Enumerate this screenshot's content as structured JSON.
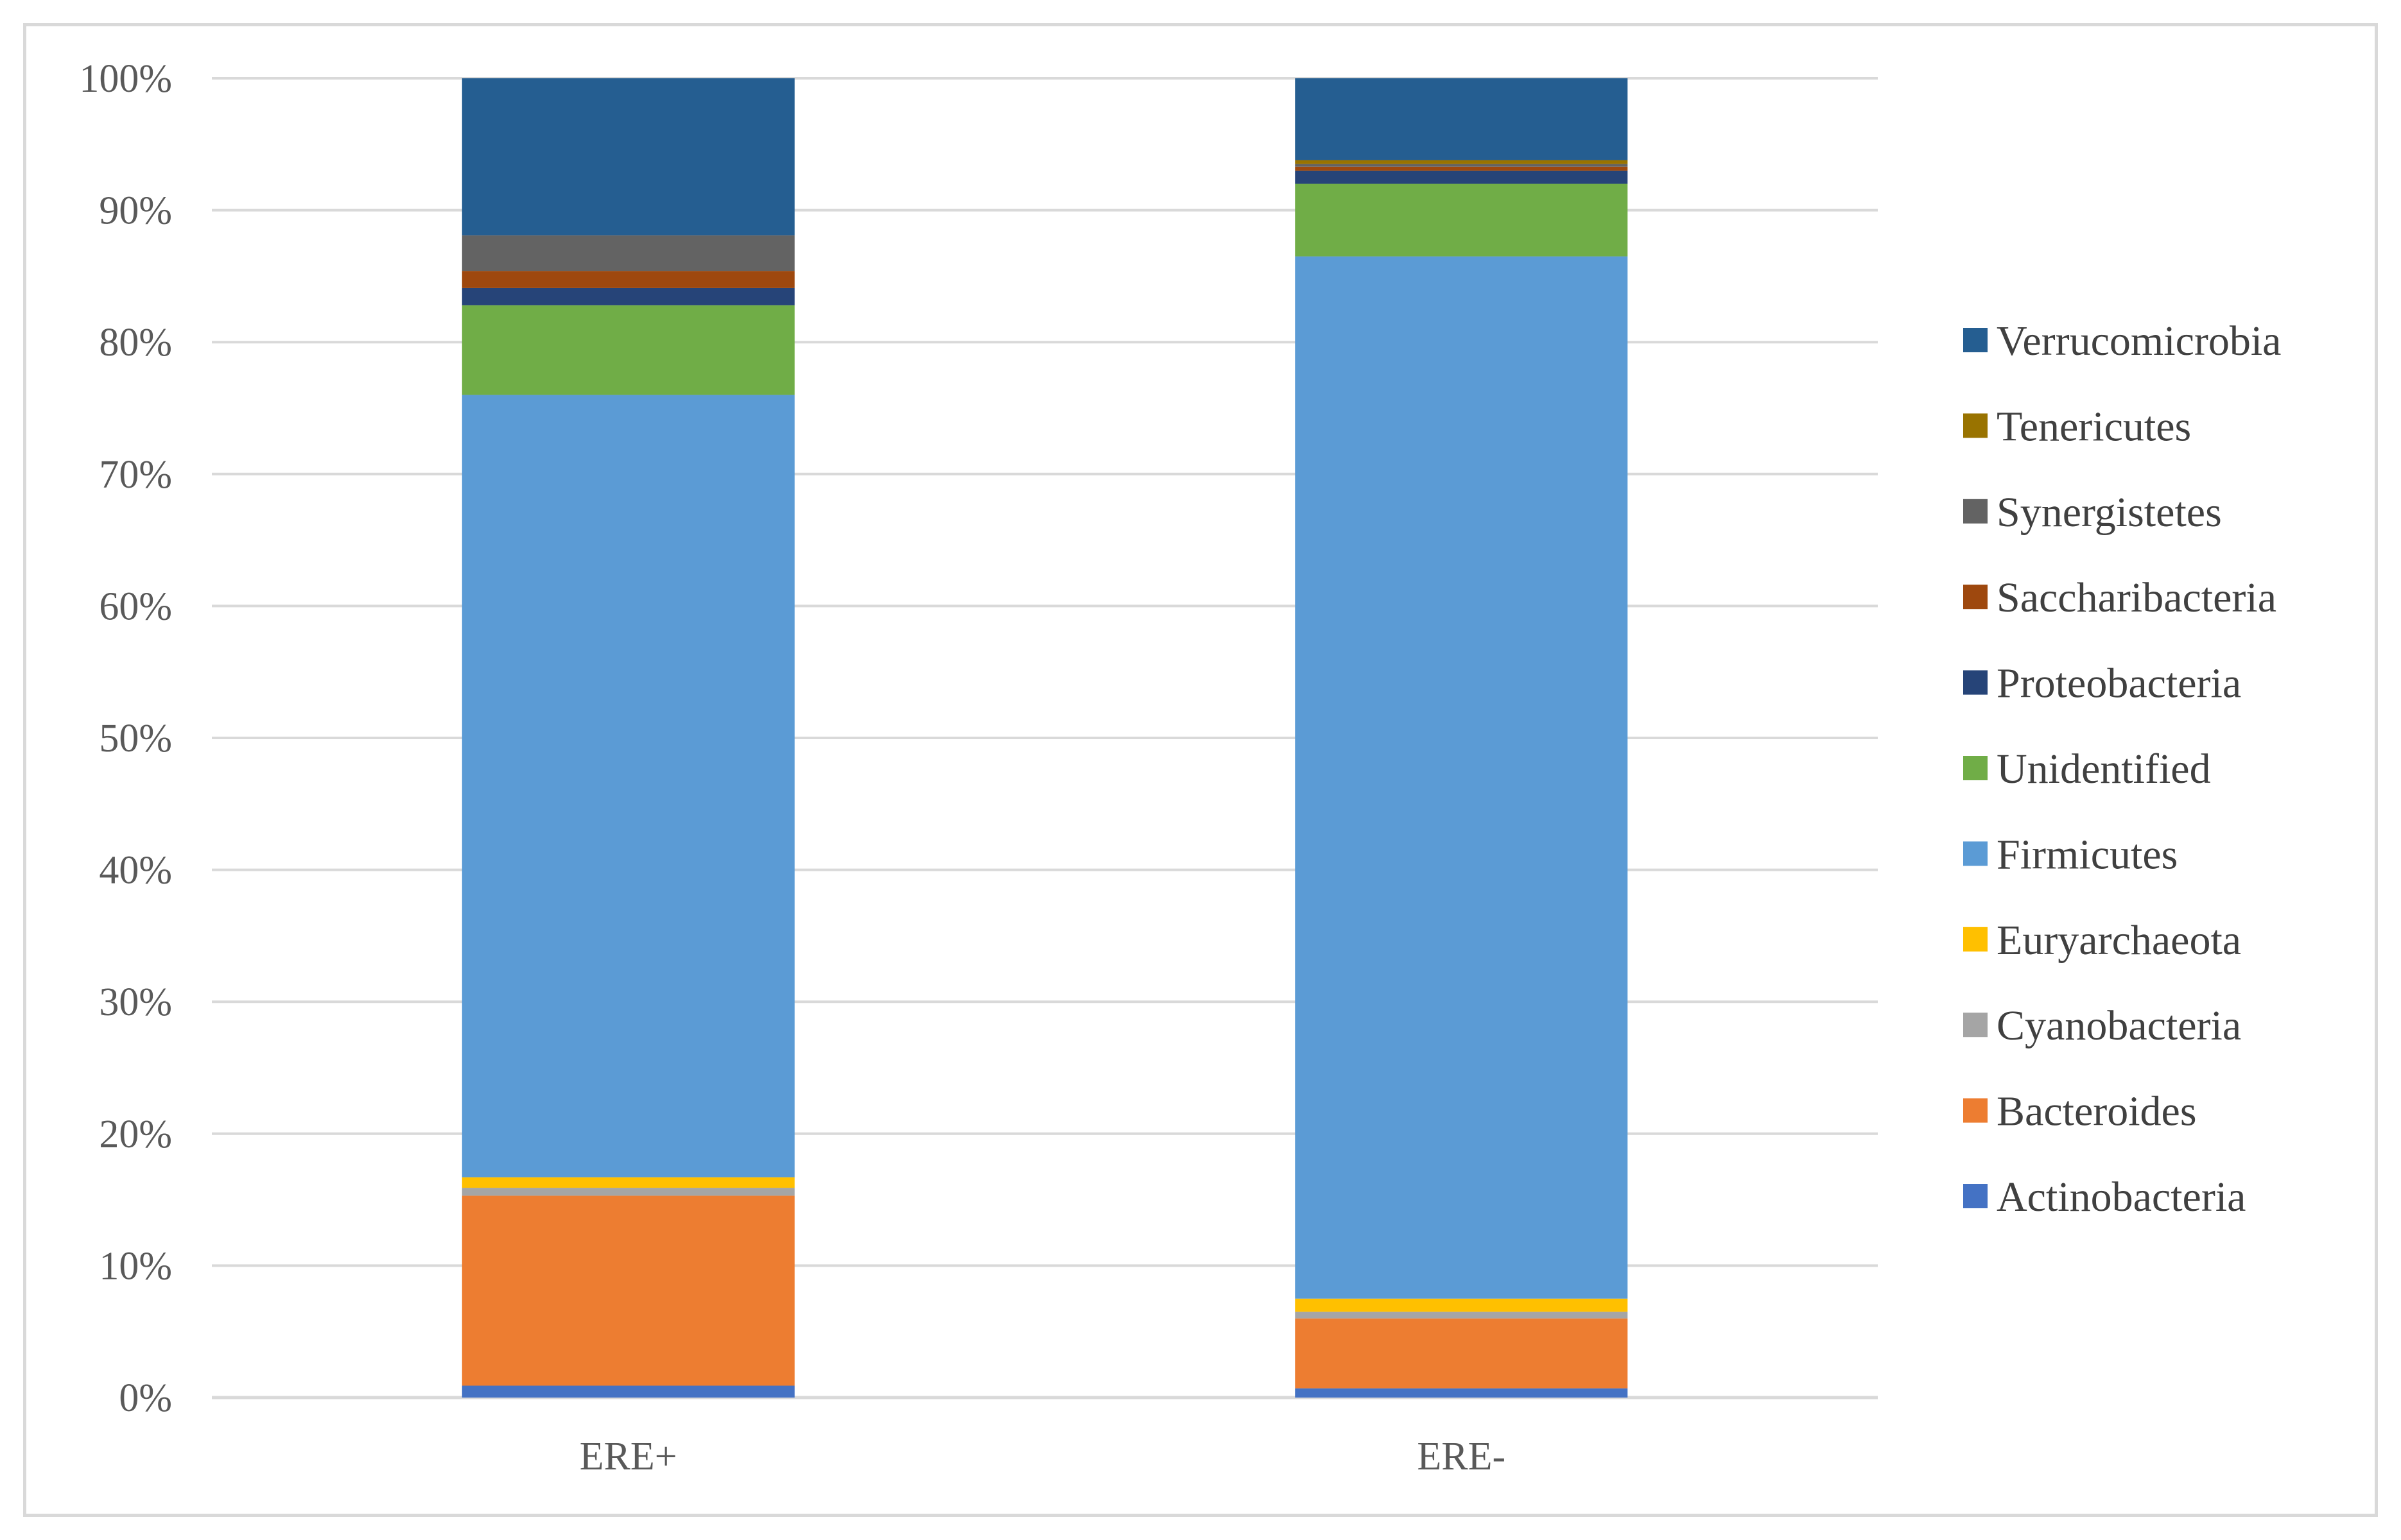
{
  "chart_data": {
    "type": "bar",
    "stacked": true,
    "percent_stacked": true,
    "categories": [
      "ERE+",
      "ERE-"
    ],
    "ylim": [
      0,
      100
    ],
    "yticks": [
      "0%",
      "10%",
      "20%",
      "30%",
      "40%",
      "50%",
      "60%",
      "70%",
      "80%",
      "90%",
      "100%"
    ],
    "grid": true,
    "legend_position": "right",
    "series": [
      {
        "name": "Actinobacteria",
        "color": "#4472c4",
        "values": [
          0.9,
          0.7
        ]
      },
      {
        "name": "Bacteroides",
        "color": "#ed7d31",
        "values": [
          14.4,
          5.3
        ]
      },
      {
        "name": "Cyanobacteria",
        "color": "#a5a5a5",
        "values": [
          0.6,
          0.5
        ]
      },
      {
        "name": "Euryarchaeota",
        "color": "#ffc000",
        "values": [
          0.8,
          1.0
        ]
      },
      {
        "name": "Firmicutes",
        "color": "#5b9bd5",
        "values": [
          59.3,
          79.0
        ]
      },
      {
        "name": "Unidentified",
        "color": "#70ad47",
        "values": [
          6.8,
          5.5
        ]
      },
      {
        "name": "Proteobacteria",
        "color": "#264478",
        "values": [
          1.3,
          1.0
        ]
      },
      {
        "name": "Saccharibacteria",
        "color": "#9e480e",
        "values": [
          1.3,
          0.3
        ]
      },
      {
        "name": "Synergistetes",
        "color": "#636363",
        "values": [
          2.7,
          0.2
        ]
      },
      {
        "name": "Tenericutes",
        "color": "#997300",
        "values": [
          0.0,
          0.3
        ]
      },
      {
        "name": "Verrucomicrobia",
        "color": "#255e91",
        "values": [
          11.9,
          6.2
        ]
      }
    ]
  }
}
